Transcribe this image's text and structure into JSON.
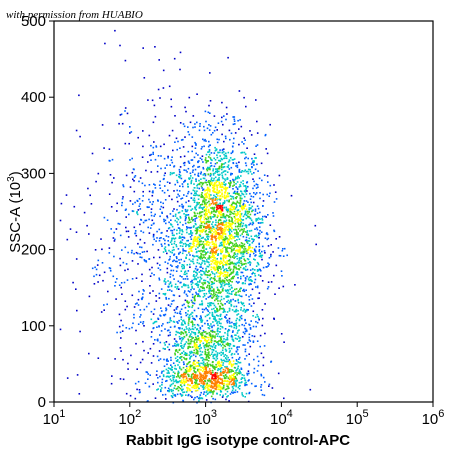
{
  "watermark": "with permission from HUABIO",
  "chart_data": {
    "type": "scatter",
    "style": "density pseudocolor dot plot",
    "xlabel": "Rabbit IgG isotype control-APC",
    "ylabel": "SSC-A (10",
    "ylabel_exponent": "3",
    "ylabel_suffix": ")",
    "xscale": "log",
    "xlim": [
      10,
      1000000
    ],
    "ylim": [
      0,
      500
    ],
    "x_ticks": [
      {
        "base": "10",
        "exp": "1",
        "value": 10
      },
      {
        "base": "10",
        "exp": "2",
        "value": 100
      },
      {
        "base": "10",
        "exp": "3",
        "value": 1000
      },
      {
        "base": "10",
        "exp": "4",
        "value": 10000
      },
      {
        "base": "10",
        "exp": "5",
        "value": 100000
      },
      {
        "base": "10",
        "exp": "6",
        "value": 1000000
      }
    ],
    "y_ticks": [
      "0",
      "100",
      "200",
      "300",
      "400",
      "500"
    ],
    "grid": false,
    "colormap": [
      "#0000c8",
      "#0060ff",
      "#00c8c8",
      "#40d020",
      "#ffff00",
      "#ff8000",
      "#ff0000"
    ],
    "populations": [
      {
        "x_center": 1500,
        "y_center": 220,
        "log_x_spread": 0.3,
        "y_spread": 65,
        "events": 2600
      },
      {
        "x_center": 1000,
        "y_center": 30,
        "log_x_spread": 0.32,
        "y_spread": 14,
        "events": 800
      },
      {
        "x_center": 1000,
        "y_center": 80,
        "log_x_spread": 0.3,
        "y_spread": 22,
        "events": 600
      },
      {
        "x_center": 300,
        "y_center": 200,
        "log_x_spread": 0.55,
        "y_spread": 95,
        "events": 900
      }
    ]
  }
}
